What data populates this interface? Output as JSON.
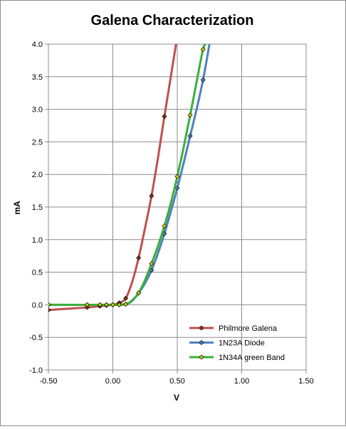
{
  "chart_data": {
    "type": "scatter",
    "title": "Galena Characterization",
    "xlabel": "V",
    "ylabel": "mA",
    "xlim": [
      -0.5,
      1.5
    ],
    "ylim": [
      -1.0,
      4.0
    ],
    "xticks": [
      -0.5,
      0.0,
      0.5,
      1.0,
      1.5
    ],
    "xtick_labels": [
      "-0.50",
      "0.00",
      "0.50",
      "1.00",
      "1.50"
    ],
    "yticks": [
      -1.0,
      -0.5,
      0.0,
      0.5,
      1.0,
      1.5,
      2.0,
      2.5,
      3.0,
      3.5,
      4.0
    ],
    "ytick_labels": [
      "-1.0",
      "-0.5",
      "0.0",
      "0.5",
      "1.0",
      "1.5",
      "2.0",
      "2.5",
      "3.0",
      "3.5",
      "4.0"
    ],
    "grid": "horizontal and vertical major gridlines",
    "legend_position": "bottom-right",
    "series": [
      {
        "name": "Philmore Galena",
        "color": "#c0504d",
        "marker_color": "#7f3b1a",
        "x": [
          -0.5,
          -0.2,
          -0.1,
          -0.05,
          0.0,
          0.05,
          0.1,
          0.2,
          0.3,
          0.4
        ],
        "y": [
          -0.08,
          -0.04,
          -0.02,
          -0.01,
          0.0,
          0.03,
          0.1,
          0.72,
          1.67,
          2.89
        ],
        "curve_x": [
          -0.5,
          -0.2,
          -0.1,
          0.0,
          0.05,
          0.1,
          0.15,
          0.2,
          0.25,
          0.3,
          0.35,
          0.4,
          0.45,
          0.49
        ],
        "curve_y": [
          -0.08,
          -0.04,
          -0.02,
          0.0,
          0.03,
          0.1,
          0.35,
          0.72,
          1.18,
          1.67,
          2.25,
          2.89,
          3.5,
          4.0
        ]
      },
      {
        "name": "1N23A Diode",
        "color": "#4f81bd",
        "marker_color": "#4f81bd",
        "x": [
          -0.5,
          -0.2,
          -0.1,
          -0.05,
          0.0,
          0.05,
          0.1,
          0.2,
          0.3,
          0.4,
          0.5,
          0.6,
          0.7
        ],
        "y": [
          0.0,
          0.0,
          0.0,
          0.0,
          0.0,
          0.0,
          0.01,
          0.18,
          0.53,
          1.09,
          1.79,
          2.59,
          3.45
        ],
        "curve_x": [
          -0.5,
          0.0,
          0.1,
          0.15,
          0.2,
          0.25,
          0.3,
          0.35,
          0.4,
          0.45,
          0.5,
          0.55,
          0.6,
          0.65,
          0.7,
          0.75
        ],
        "curve_y": [
          0.0,
          0.0,
          0.01,
          0.06,
          0.18,
          0.33,
          0.53,
          0.79,
          1.09,
          1.43,
          1.79,
          2.18,
          2.59,
          3.0,
          3.45,
          4.0
        ]
      },
      {
        "name": "1N34A green Band",
        "color": "#3aaf3a",
        "marker_color": "#d4d000",
        "x": [
          -0.5,
          -0.2,
          -0.1,
          -0.05,
          0.0,
          0.05,
          0.1,
          0.2,
          0.3,
          0.4,
          0.5,
          0.6,
          0.7
        ],
        "y": [
          0.0,
          0.0,
          0.0,
          0.0,
          0.0,
          0.0,
          0.01,
          0.18,
          0.63,
          1.21,
          1.97,
          2.91,
          3.92
        ],
        "curve_x": [
          -0.5,
          0.0,
          0.1,
          0.15,
          0.2,
          0.25,
          0.3,
          0.35,
          0.4,
          0.45,
          0.5,
          0.55,
          0.6,
          0.65,
          0.7,
          0.72
        ],
        "curve_y": [
          0.0,
          0.0,
          0.01,
          0.07,
          0.18,
          0.38,
          0.63,
          0.9,
          1.21,
          1.56,
          1.97,
          2.42,
          2.91,
          3.42,
          3.92,
          4.0
        ]
      }
    ]
  }
}
